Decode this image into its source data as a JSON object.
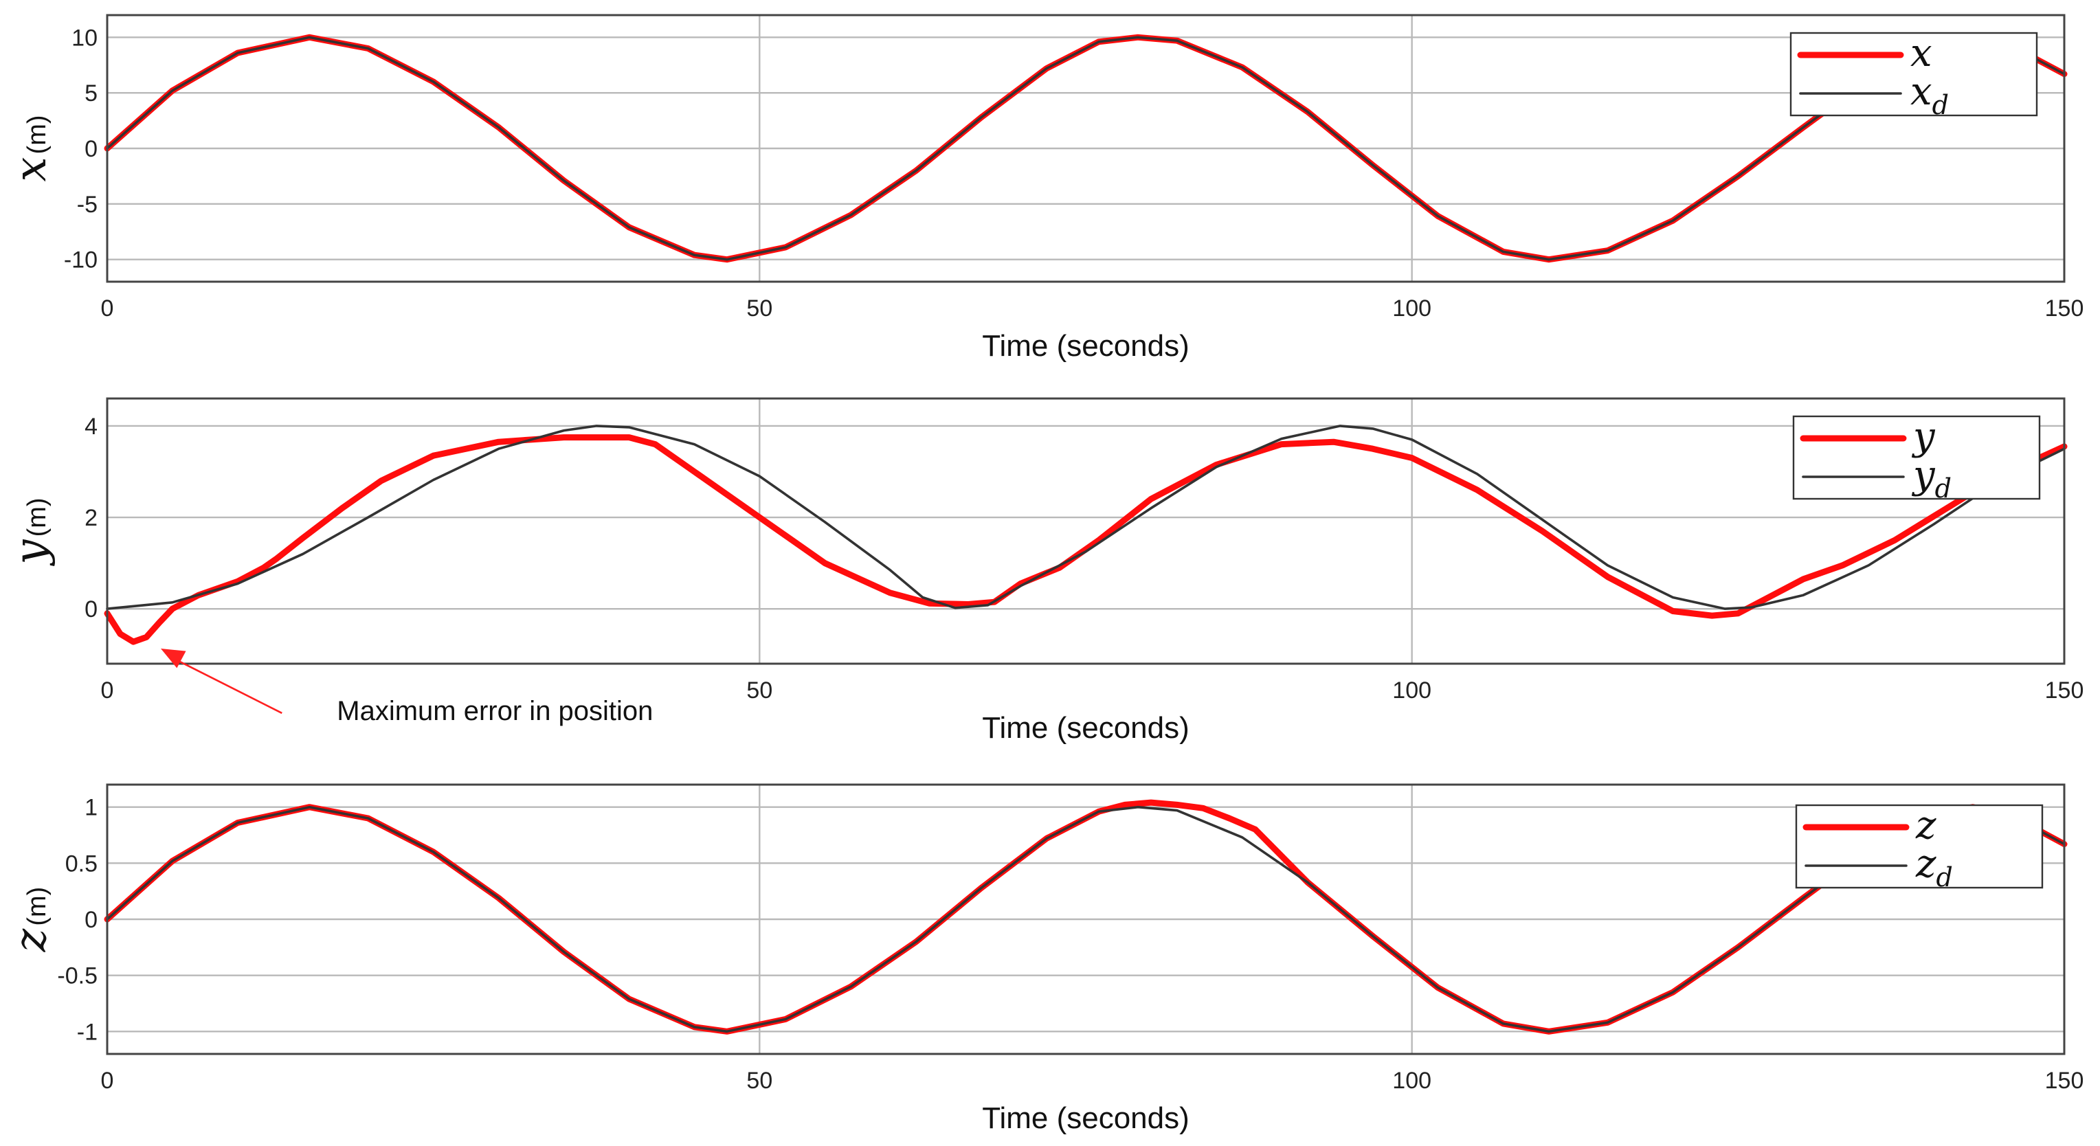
{
  "chart_data": [
    {
      "type": "line",
      "id": "x",
      "title": "",
      "xlabel": "Time (seconds)",
      "ylabel_var": "x",
      "ylabel_unit": "(m)",
      "xlim": [
        0,
        150
      ],
      "ylim": [
        -12,
        12
      ],
      "xticks": [
        0,
        50,
        100,
        150
      ],
      "xtick_labels": [
        "0",
        "50",
        "100",
        "150"
      ],
      "yticks": [
        10,
        5,
        0,
        -5,
        -10
      ],
      "ytick_labels": [
        "10",
        "5",
        "0",
        "-5",
        "-10"
      ],
      "grid": true,
      "legend_position": "top-right",
      "series": [
        {
          "name": "x",
          "color": "#ff0d0d",
          "points": [
            [
              0,
              0
            ],
            [
              5,
              5.2
            ],
            [
              10,
              8.6
            ],
            [
              15.5,
              10
            ],
            [
              20,
              9.0
            ],
            [
              25,
              6.0
            ],
            [
              30,
              1.9
            ],
            [
              35,
              -2.9
            ],
            [
              40,
              -7.1
            ],
            [
              45,
              -9.6
            ],
            [
              47.5,
              -10
            ],
            [
              52,
              -8.9
            ],
            [
              57,
              -6.0
            ],
            [
              62,
              -2.0
            ],
            [
              67,
              2.8
            ],
            [
              72,
              7.2
            ],
            [
              76,
              9.6
            ],
            [
              79,
              10
            ],
            [
              82,
              9.7
            ],
            [
              87,
              7.3
            ],
            [
              92,
              3.3
            ],
            [
              97,
              -1.5
            ],
            [
              102,
              -6.1
            ],
            [
              107,
              -9.3
            ],
            [
              110.5,
              -10
            ],
            [
              115,
              -9.2
            ],
            [
              120,
              -6.5
            ],
            [
              125,
              -2.5
            ],
            [
              130,
              1.9
            ],
            [
              135,
              6.2
            ],
            [
              140,
              9.3
            ],
            [
              143,
              10
            ],
            [
              146,
              9.2
            ],
            [
              150,
              6.7
            ]
          ]
        },
        {
          "name": "x",
          "name_subscript": "d",
          "color": "#333333",
          "points": [
            [
              0,
              0
            ],
            [
              5,
              5.2
            ],
            [
              10,
              8.6
            ],
            [
              15.5,
              10
            ],
            [
              20,
              9.0
            ],
            [
              25,
              6.0
            ],
            [
              30,
              1.9
            ],
            [
              35,
              -2.9
            ],
            [
              40,
              -7.1
            ],
            [
              45,
              -9.6
            ],
            [
              47.5,
              -10
            ],
            [
              52,
              -8.9
            ],
            [
              57,
              -6.0
            ],
            [
              62,
              -2.0
            ],
            [
              67,
              2.8
            ],
            [
              72,
              7.2
            ],
            [
              76,
              9.6
            ],
            [
              79,
              10
            ],
            [
              82,
              9.7
            ],
            [
              87,
              7.3
            ],
            [
              92,
              3.3
            ],
            [
              97,
              -1.5
            ],
            [
              102,
              -6.1
            ],
            [
              107,
              -9.3
            ],
            [
              110.5,
              -10
            ],
            [
              115,
              -9.2
            ],
            [
              120,
              -6.5
            ],
            [
              125,
              -2.5
            ],
            [
              130,
              1.9
            ],
            [
              135,
              6.2
            ],
            [
              140,
              9.3
            ],
            [
              143,
              10
            ],
            [
              146,
              9.2
            ],
            [
              150,
              6.7
            ]
          ]
        }
      ]
    },
    {
      "type": "line",
      "id": "y",
      "title": "",
      "xlabel": "Time (seconds)",
      "ylabel_var": "y",
      "ylabel_unit": "(m)",
      "xlim": [
        0,
        150
      ],
      "ylim": [
        -1.2,
        4.6
      ],
      "xticks": [
        0,
        50,
        100,
        150
      ],
      "xtick_labels": [
        "0",
        "50",
        "100",
        "150"
      ],
      "yticks": [
        4,
        2,
        0
      ],
      "ytick_labels": [
        "4",
        "2",
        "0"
      ],
      "grid": true,
      "legend_position": "top-right",
      "series": [
        {
          "name": "y",
          "color": "#ff0d0d",
          "points": [
            [
              0,
              -0.1
            ],
            [
              1,
              -0.55
            ],
            [
              2,
              -0.72
            ],
            [
              3,
              -0.62
            ],
            [
              4,
              -0.3
            ],
            [
              5,
              0.0
            ],
            [
              7,
              0.3
            ],
            [
              10,
              0.6
            ],
            [
              12,
              0.9
            ],
            [
              13,
              1.1
            ],
            [
              15,
              1.55
            ],
            [
              18,
              2.2
            ],
            [
              21,
              2.8
            ],
            [
              25,
              3.35
            ],
            [
              30,
              3.65
            ],
            [
              35,
              3.75
            ],
            [
              40,
              3.75
            ],
            [
              42,
              3.6
            ],
            [
              45,
              3.0
            ],
            [
              50,
              2.0
            ],
            [
              55,
              1.0
            ],
            [
              60,
              0.35
            ],
            [
              63,
              0.12
            ],
            [
              66,
              0.1
            ],
            [
              68,
              0.15
            ],
            [
              70,
              0.55
            ],
            [
              73,
              0.9
            ],
            [
              76,
              1.5
            ],
            [
              80,
              2.4
            ],
            [
              85,
              3.15
            ],
            [
              90,
              3.6
            ],
            [
              94,
              3.65
            ],
            [
              97,
              3.5
            ],
            [
              100,
              3.3
            ],
            [
              105,
              2.6
            ],
            [
              110,
              1.7
            ],
            [
              115,
              0.7
            ],
            [
              120,
              -0.05
            ],
            [
              123,
              -0.15
            ],
            [
              125,
              -0.1
            ],
            [
              127,
              0.2
            ],
            [
              130,
              0.65
            ],
            [
              133,
              0.95
            ],
            [
              137,
              1.5
            ],
            [
              141,
              2.2
            ],
            [
              145,
              2.9
            ],
            [
              150,
              3.55
            ]
          ]
        },
        {
          "name": "y",
          "name_subscript": "d",
          "color": "#333333",
          "points": [
            [
              0,
              0
            ],
            [
              5,
              0.14
            ],
            [
              10,
              0.55
            ],
            [
              15,
              1.2
            ],
            [
              20,
              2.0
            ],
            [
              25,
              2.82
            ],
            [
              30,
              3.5
            ],
            [
              35,
              3.9
            ],
            [
              37.5,
              4.0
            ],
            [
              40,
              3.97
            ],
            [
              45,
              3.6
            ],
            [
              50,
              2.9
            ],
            [
              55,
              1.9
            ],
            [
              60,
              0.85
            ],
            [
              62.5,
              0.25
            ],
            [
              65,
              0.02
            ],
            [
              67.5,
              0.08
            ],
            [
              70,
              0.5
            ],
            [
              75,
              1.25
            ],
            [
              80,
              2.2
            ],
            [
              85,
              3.1
            ],
            [
              90,
              3.72
            ],
            [
              94.5,
              4.0
            ],
            [
              97,
              3.94
            ],
            [
              100,
              3.7
            ],
            [
              105,
              2.95
            ],
            [
              110,
              1.95
            ],
            [
              115,
              0.95
            ],
            [
              120,
              0.25
            ],
            [
              124,
              0.0
            ],
            [
              126,
              0.03
            ],
            [
              130,
              0.3
            ],
            [
              135,
              0.95
            ],
            [
              140,
              1.85
            ],
            [
              145,
              2.8
            ],
            [
              150,
              3.5
            ]
          ]
        }
      ],
      "annotation": {
        "text": "Maximum error in position",
        "target": [
          2,
          -0.72
        ],
        "label_anchor": [
          15.5,
          -1.68
        ]
      }
    },
    {
      "type": "line",
      "id": "z",
      "title": "",
      "xlabel": "Time (seconds)",
      "ylabel_var": "z",
      "ylabel_unit": "(m)",
      "xlim": [
        0,
        150
      ],
      "ylim": [
        -1.2,
        1.2
      ],
      "xticks": [
        0,
        50,
        100,
        150
      ],
      "xtick_labels": [
        "0",
        "50",
        "100",
        "150"
      ],
      "yticks": [
        1,
        0.5,
        0,
        -0.5,
        -1
      ],
      "ytick_labels": [
        "1",
        "0.5",
        "0",
        "-0.5",
        "-1"
      ],
      "grid": true,
      "legend_position": "top-right",
      "series": [
        {
          "name": "z",
          "color": "#ff0d0d",
          "points": [
            [
              0,
              0
            ],
            [
              5,
              0.52
            ],
            [
              10,
              0.86
            ],
            [
              15.5,
              1.0
            ],
            [
              20,
              0.9
            ],
            [
              25,
              0.6
            ],
            [
              30,
              0.19
            ],
            [
              35,
              -0.29
            ],
            [
              40,
              -0.71
            ],
            [
              45,
              -0.96
            ],
            [
              47.5,
              -1.0
            ],
            [
              52,
              -0.89
            ],
            [
              57,
              -0.6
            ],
            [
              62,
              -0.2
            ],
            [
              67,
              0.28
            ],
            [
              72,
              0.72
            ],
            [
              76,
              0.96
            ],
            [
              78,
              1.02
            ],
            [
              80,
              1.04
            ],
            [
              82,
              1.02
            ],
            [
              84,
              0.99
            ],
            [
              86,
              0.9
            ],
            [
              88,
              0.8
            ],
            [
              92,
              0.33
            ],
            [
              97,
              -0.15
            ],
            [
              102,
              -0.61
            ],
            [
              107,
              -0.93
            ],
            [
              110.5,
              -1.0
            ],
            [
              115,
              -0.92
            ],
            [
              120,
              -0.65
            ],
            [
              125,
              -0.25
            ],
            [
              130,
              0.19
            ],
            [
              135,
              0.62
            ],
            [
              140,
              0.93
            ],
            [
              143,
              1.0
            ],
            [
              146,
              0.92
            ],
            [
              150,
              0.67
            ]
          ]
        },
        {
          "name": "z",
          "name_subscript": "d",
          "color": "#333333",
          "points": [
            [
              0,
              0
            ],
            [
              5,
              0.52
            ],
            [
              10,
              0.86
            ],
            [
              15.5,
              1.0
            ],
            [
              20,
              0.9
            ],
            [
              25,
              0.6
            ],
            [
              30,
              0.19
            ],
            [
              35,
              -0.29
            ],
            [
              40,
              -0.71
            ],
            [
              45,
              -0.96
            ],
            [
              47.5,
              -1.0
            ],
            [
              52,
              -0.89
            ],
            [
              57,
              -0.6
            ],
            [
              62,
              -0.2
            ],
            [
              67,
              0.28
            ],
            [
              72,
              0.72
            ],
            [
              76,
              0.96
            ],
            [
              79,
              1.0
            ],
            [
              82,
              0.97
            ],
            [
              87,
              0.73
            ],
            [
              92,
              0.33
            ],
            [
              97,
              -0.15
            ],
            [
              102,
              -0.61
            ],
            [
              107,
              -0.93
            ],
            [
              110.5,
              -1.0
            ],
            [
              115,
              -0.92
            ],
            [
              120,
              -0.65
            ],
            [
              125,
              -0.25
            ],
            [
              130,
              0.19
            ],
            [
              135,
              0.62
            ],
            [
              140,
              0.93
            ],
            [
              143,
              1.0
            ],
            [
              146,
              0.92
            ],
            [
              150,
              0.67
            ]
          ]
        }
      ]
    }
  ]
}
